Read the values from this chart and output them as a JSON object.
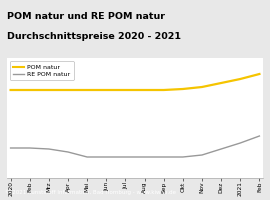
{
  "title_line1": "POM natur und RE POM natur",
  "title_line2": "Durchschnittspreise 2020 - 2021",
  "title_bg": "#f5c400",
  "title_color": "#000000",
  "footer_text": "© 2021 Kunststoff Information, Bad Homburg - www.kiweb.de",
  "footer_bg": "#7a7a7a",
  "footer_color": "#ffffff",
  "legend_labels": [
    "POM natur",
    "RE POM natur"
  ],
  "legend_colors": [
    "#f5c400",
    "#999999"
  ],
  "x_labels": [
    "2020",
    "Feb",
    "Mrz",
    "Apr",
    "Mai",
    "Jun",
    "Jul",
    "Aug",
    "Sep",
    "Okt",
    "Nov",
    "Dez",
    "2021",
    "Feb"
  ],
  "pom_natur": [
    88,
    88,
    88,
    88,
    88,
    88,
    88,
    88,
    88,
    89,
    91,
    95,
    99,
    104
  ],
  "re_pom_natur": [
    30,
    30,
    29,
    26,
    21,
    21,
    21,
    21,
    21,
    21,
    23,
    29,
    35,
    42
  ],
  "plot_bg": "#e8e8e8",
  "chart_bg": "#f0f0f0",
  "chart_inner_bg": "#ffffff",
  "grid_color": "#cccccc",
  "ylim": [
    0,
    120
  ],
  "title_fontsize": 6.8,
  "footer_fontsize": 4.0,
  "tick_fontsize": 4.2,
  "legend_fontsize": 4.5
}
